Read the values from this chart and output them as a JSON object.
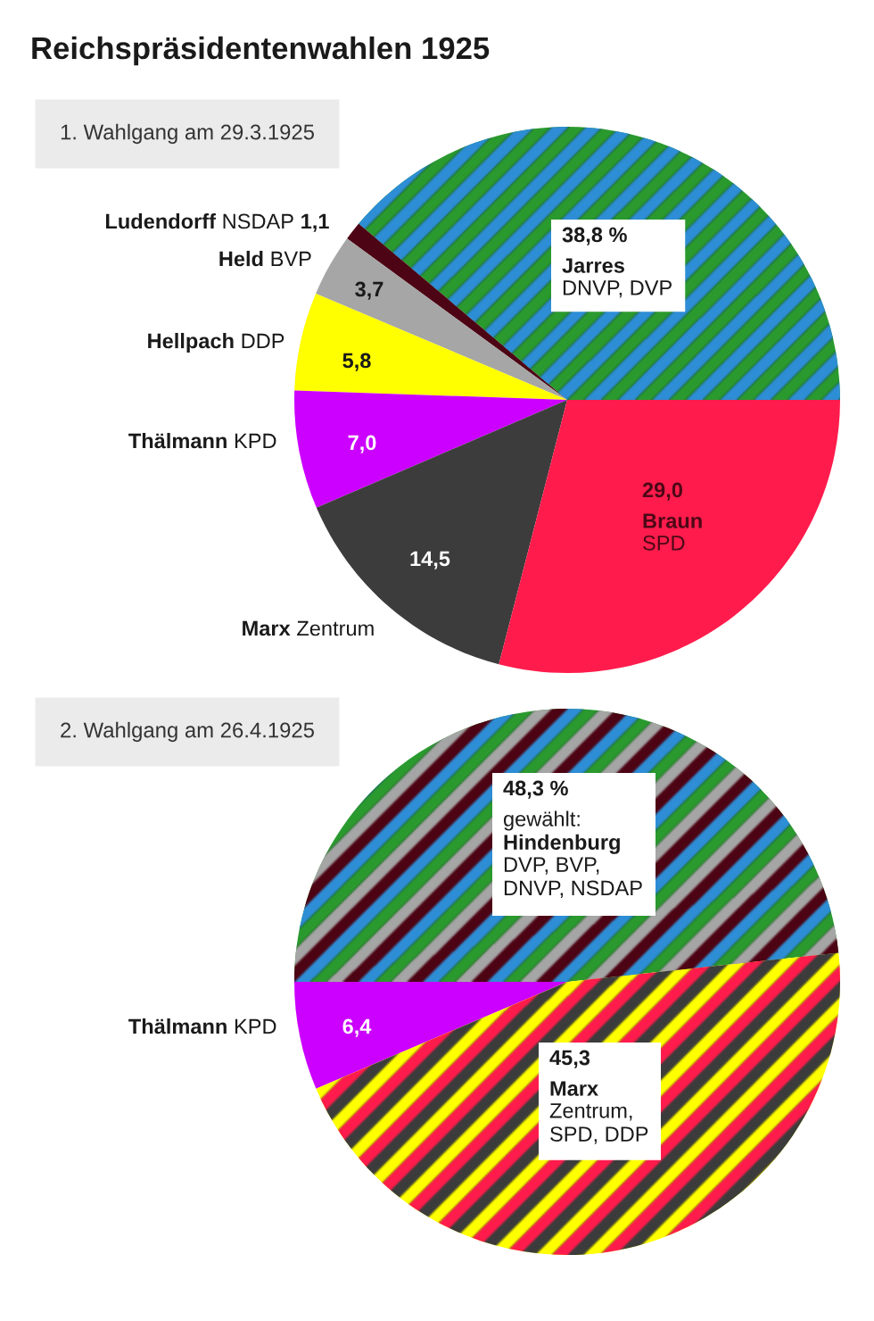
{
  "chart_data": [
    {
      "type": "pie",
      "title": "Reichspräsidentenwahlen 1925",
      "subtitle": "1. Wahlgang am 29.3.1925",
      "categories": [
        "Jarres\nDNVP, DVP",
        "Ludendorff NSDAP",
        "Held BVP",
        "Hellpach DDP",
        "Thälmann KPD",
        "Marx Zentrum",
        "Braun\nSPD"
      ],
      "values": [
        38.8,
        1.1,
        3.7,
        5.8,
        7.0,
        14.5,
        29.0
      ],
      "value_labels": [
        "38,8 %",
        "1,1",
        "3,7",
        "5,8",
        "7,0",
        "14,5",
        "29,0"
      ],
      "colors": [
        [
          "#2a9a2f",
          "#2e8ed6"
        ],
        "#4d0414",
        "#a6a6a6",
        "#ffff00",
        "#cc00ff",
        "#3c3c3c",
        "#ff1c4c"
      ]
    },
    {
      "type": "pie",
      "subtitle": "2. Wahlgang am 26.4.1925",
      "categories": [
        "gewählt:\nHindenburg\nDVP, BVP,\nDNVP, NSDAP",
        "Thälmann KPD",
        "Marx\nZentrum,\nSPD, DDP"
      ],
      "values": [
        48.3,
        6.4,
        45.3
      ],
      "value_labels": [
        "48,3 %",
        "6,4",
        "45,3"
      ],
      "colors": [
        [
          "#2a9a2f",
          "#a6a6a6",
          "#4d0414",
          "#2e8ed6"
        ],
        "#cc00ff",
        [
          "#ffff00",
          "#ff1c4c",
          "#3c3c3c"
        ]
      ]
    }
  ]
}
